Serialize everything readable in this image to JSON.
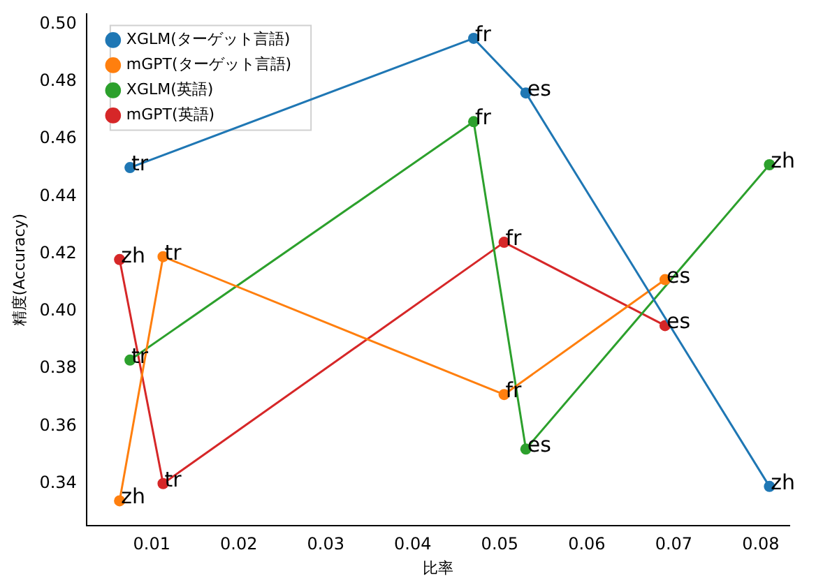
{
  "chart_data": {
    "type": "line",
    "xlabel": "比率",
    "ylabel": "精度(Accuracy)",
    "marker": "circle",
    "legend": "top left",
    "grid": false,
    "xlim": [
      0.0025,
      0.0833
    ],
    "xticks": [
      0.01,
      0.02,
      0.03,
      0.04,
      0.05,
      0.06,
      0.07,
      0.08
    ],
    "ylim": [
      0.3254,
      0.5034
    ],
    "yticks": [
      0.34,
      0.36,
      0.38,
      {
        "value": 0.4,
        "label": "0.40"
      },
      0.42,
      0.44,
      0.46,
      0.48,
      {
        "value": 0.5,
        "label": "0.50"
      }
    ],
    "series": [
      {
        "name": "XGLM(ターゲット言語)",
        "color": "#1f77b4",
        "x": [
          0.0075,
          0.047,
          0.053,
          0.081
        ],
        "values": [
          0.45,
          0.495,
          0.476,
          0.339
        ]
      },
      {
        "name": "mGPT(ターゲット言語)",
        "color": "#ff7f0e",
        "x": [
          0.0063,
          0.0113,
          0.0505,
          0.069
        ],
        "values": [
          0.334,
          0.419,
          0.371,
          0.411
        ]
      },
      {
        "name": "XGLM(英語)",
        "color": "#2ca02c",
        "x": [
          0.0075,
          0.047,
          0.053,
          0.081
        ],
        "values": [
          0.383,
          0.466,
          0.352,
          0.451
        ]
      },
      {
        "name": "mGPT(英語)",
        "color": "#d62728",
        "x": [
          0.0063,
          0.0113,
          0.0505,
          0.069
        ],
        "values": [
          0.418,
          0.34,
          0.424,
          0.395
        ]
      }
    ],
    "annotations": [
      {
        "text": "tr",
        "x": 0.0075,
        "y": 0.45
      },
      {
        "text": "fr",
        "x": 0.047,
        "y": 0.495
      },
      {
        "text": "es",
        "x": 0.053,
        "y": 0.476
      },
      {
        "text": "zh",
        "x": 0.081,
        "y": 0.339
      },
      {
        "text": "zh",
        "x": 0.0063,
        "y": 0.334
      },
      {
        "text": "tr",
        "x": 0.0113,
        "y": 0.419
      },
      {
        "text": "fr",
        "x": 0.0505,
        "y": 0.371
      },
      {
        "text": "es",
        "x": 0.069,
        "y": 0.411
      },
      {
        "text": "tr",
        "x": 0.0075,
        "y": 0.383
      },
      {
        "text": "fr",
        "x": 0.047,
        "y": 0.466
      },
      {
        "text": "es",
        "x": 0.053,
        "y": 0.352
      },
      {
        "text": "zh",
        "x": 0.081,
        "y": 0.451
      },
      {
        "text": "zh",
        "x": 0.0063,
        "y": 0.418
      },
      {
        "text": "tr",
        "x": 0.0113,
        "y": 0.34
      },
      {
        "text": "fr",
        "x": 0.0505,
        "y": 0.424
      },
      {
        "text": "es",
        "x": 0.069,
        "y": 0.395
      }
    ]
  }
}
